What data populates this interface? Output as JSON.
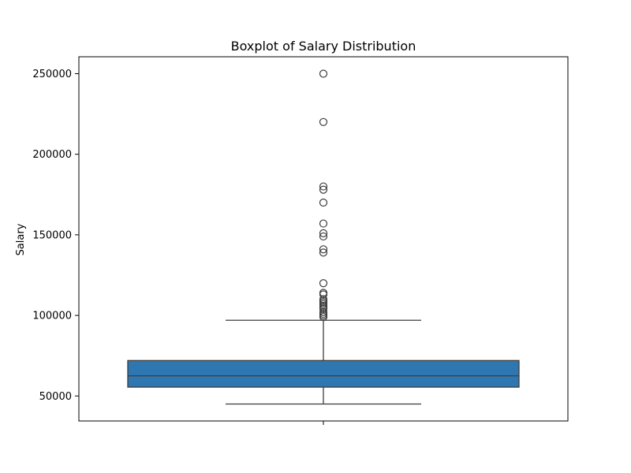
{
  "chart_data": {
    "type": "box",
    "title": "Boxplot of Salary Distribution",
    "xlabel": "",
    "ylabel": "Salary",
    "ylim": [
      34500,
      260500
    ],
    "yticks": [
      50000,
      100000,
      150000,
      200000,
      250000
    ],
    "grid": false,
    "legend": "none",
    "colors": {
      "box_fill": "#2f77b0",
      "line": "#3d3d3d"
    },
    "box": {
      "whisker_low": 45000,
      "q1": 55500,
      "median": 62500,
      "q3": 72000,
      "whisker_high": 97000
    },
    "outliers": [
      99000,
      100000,
      101000,
      102000,
      104000,
      105000,
      106000,
      107000,
      108000,
      109000,
      110000,
      113000,
      114000,
      120000,
      139000,
      141000,
      149000,
      151000,
      157000,
      170000,
      178000,
      180000,
      220000,
      250000
    ]
  }
}
